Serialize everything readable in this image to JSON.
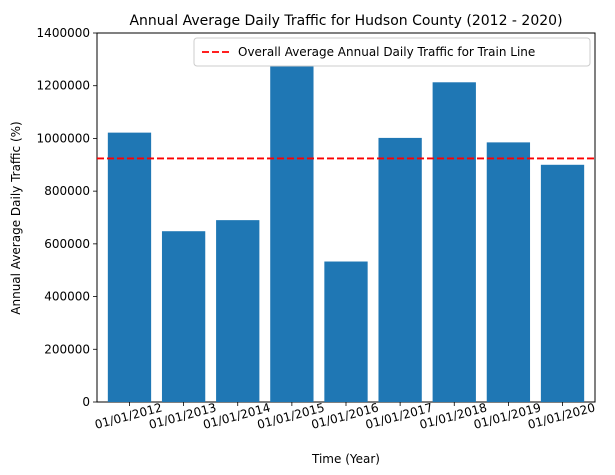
{
  "chart_data": {
    "type": "bar",
    "title": "Annual Average Daily Traffic for Hudson County (2012 - 2020)",
    "xlabel": "Time (Year)",
    "ylabel": "Annual Average Daily Traffic (%)",
    "categories": [
      "01/01/2012",
      "01/01/2013",
      "01/01/2014",
      "01/01/2015",
      "01/01/2016",
      "01/01/2017",
      "01/01/2018",
      "01/01/2019",
      "01/01/2020"
    ],
    "values": [
      1022000,
      648000,
      690000,
      1325000,
      533000,
      1002000,
      1213000,
      985000,
      900000
    ],
    "ylim": [
      0,
      1400000
    ],
    "yticks": [
      0,
      200000,
      400000,
      600000,
      800000,
      1000000,
      1200000,
      1400000
    ],
    "bar_color": "#1f77b4",
    "reference_line": {
      "label": "Overall Average Annual Daily Traffic for Train Line",
      "value": 924000,
      "color": "#ff0000",
      "style": "dashed"
    },
    "legend_position": "top-right",
    "grid": false
  }
}
